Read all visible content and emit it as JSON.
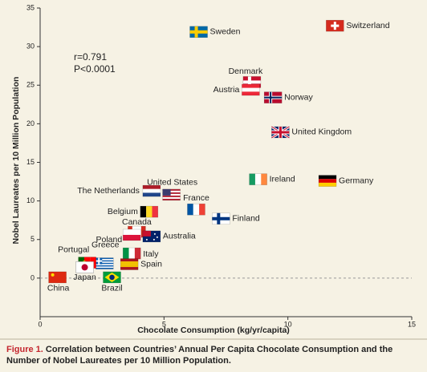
{
  "chart_data": {
    "type": "scatter",
    "x_label": "Chocolate Consumption (kg/yr/capita)",
    "y_label": "Nobel Laureates per 10 Million Population",
    "annotations": [
      "r=0.791",
      "P<0.0001"
    ],
    "labels": [
      "Sweden",
      "Switzerland",
      "Denmark",
      "Austria",
      "Norway",
      "United Kingdom",
      "Ireland",
      "Germany",
      "United States",
      "The Netherlands",
      "France",
      "Finland",
      "Belgium",
      "Canada",
      "Poland",
      "Australia",
      "Greece",
      "Portugal",
      "Italy",
      "Spain",
      "Japan",
      "China",
      "Brazil"
    ],
    "x": [
      6.4,
      11.9,
      8.55,
      8.5,
      9.4,
      9.7,
      8.8,
      11.6,
      5.3,
      4.5,
      6.3,
      7.3,
      4.4,
      3.9,
      3.7,
      4.5,
      2.6,
      1.9,
      3.7,
      3.6,
      1.8,
      0.7,
      2.9
    ],
    "values": [
      31.9,
      32.7,
      25.4,
      24.4,
      23.4,
      18.9,
      12.8,
      12.6,
      10.8,
      11.3,
      8.9,
      7.7,
      8.6,
      6.0,
      5.6,
      5.4,
      1.9,
      2.0,
      3.2,
      1.8,
      1.4,
      0.1,
      0.1
    ],
    "xlim": [
      0,
      15
    ],
    "xticks": [
      0,
      5,
      10,
      15
    ],
    "ylim": [
      -5,
      35
    ],
    "yticks": [
      0,
      5,
      10,
      15,
      20,
      25,
      30,
      35
    ],
    "zero_line": true
  },
  "caption": {
    "label": "Figure 1.",
    "text": "Correlation between Countries’ Annual Per Capita Chocolate Consumption and the Number of Nobel Laureates per 10 Million Population."
  }
}
